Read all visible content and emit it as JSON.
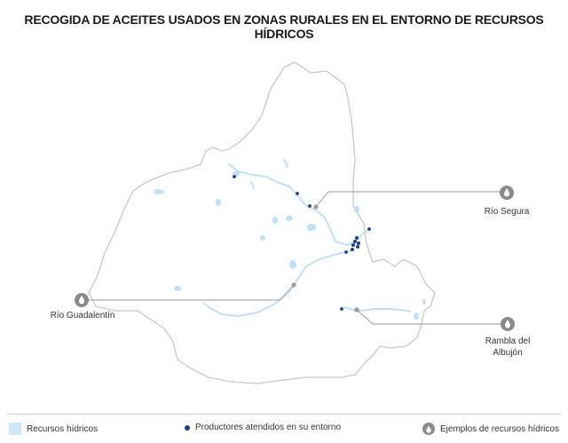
{
  "title": "RECOGIDA DE ACEITES USADOS EN ZONAS RURALES EN EL ENTORNO DE RECURSOS HÍDRICOS",
  "colors": {
    "water": "#cfe8f9",
    "producer": "#1b3f8f",
    "outline": "#c8c8c8",
    "marker": "#8a8a8a",
    "leader": "#9a9a9a"
  },
  "map_labels": {
    "rio_segura": "Río Segura",
    "rio_guadalentin": "Río Guadalentín",
    "rambla_albujon": "Rambla del\nAlbujón"
  },
  "legend": {
    "water": "Recursos hídricos",
    "producers": "Productores atendidos en su entorno",
    "examples": "Ejemplos de recursos hídricos"
  }
}
